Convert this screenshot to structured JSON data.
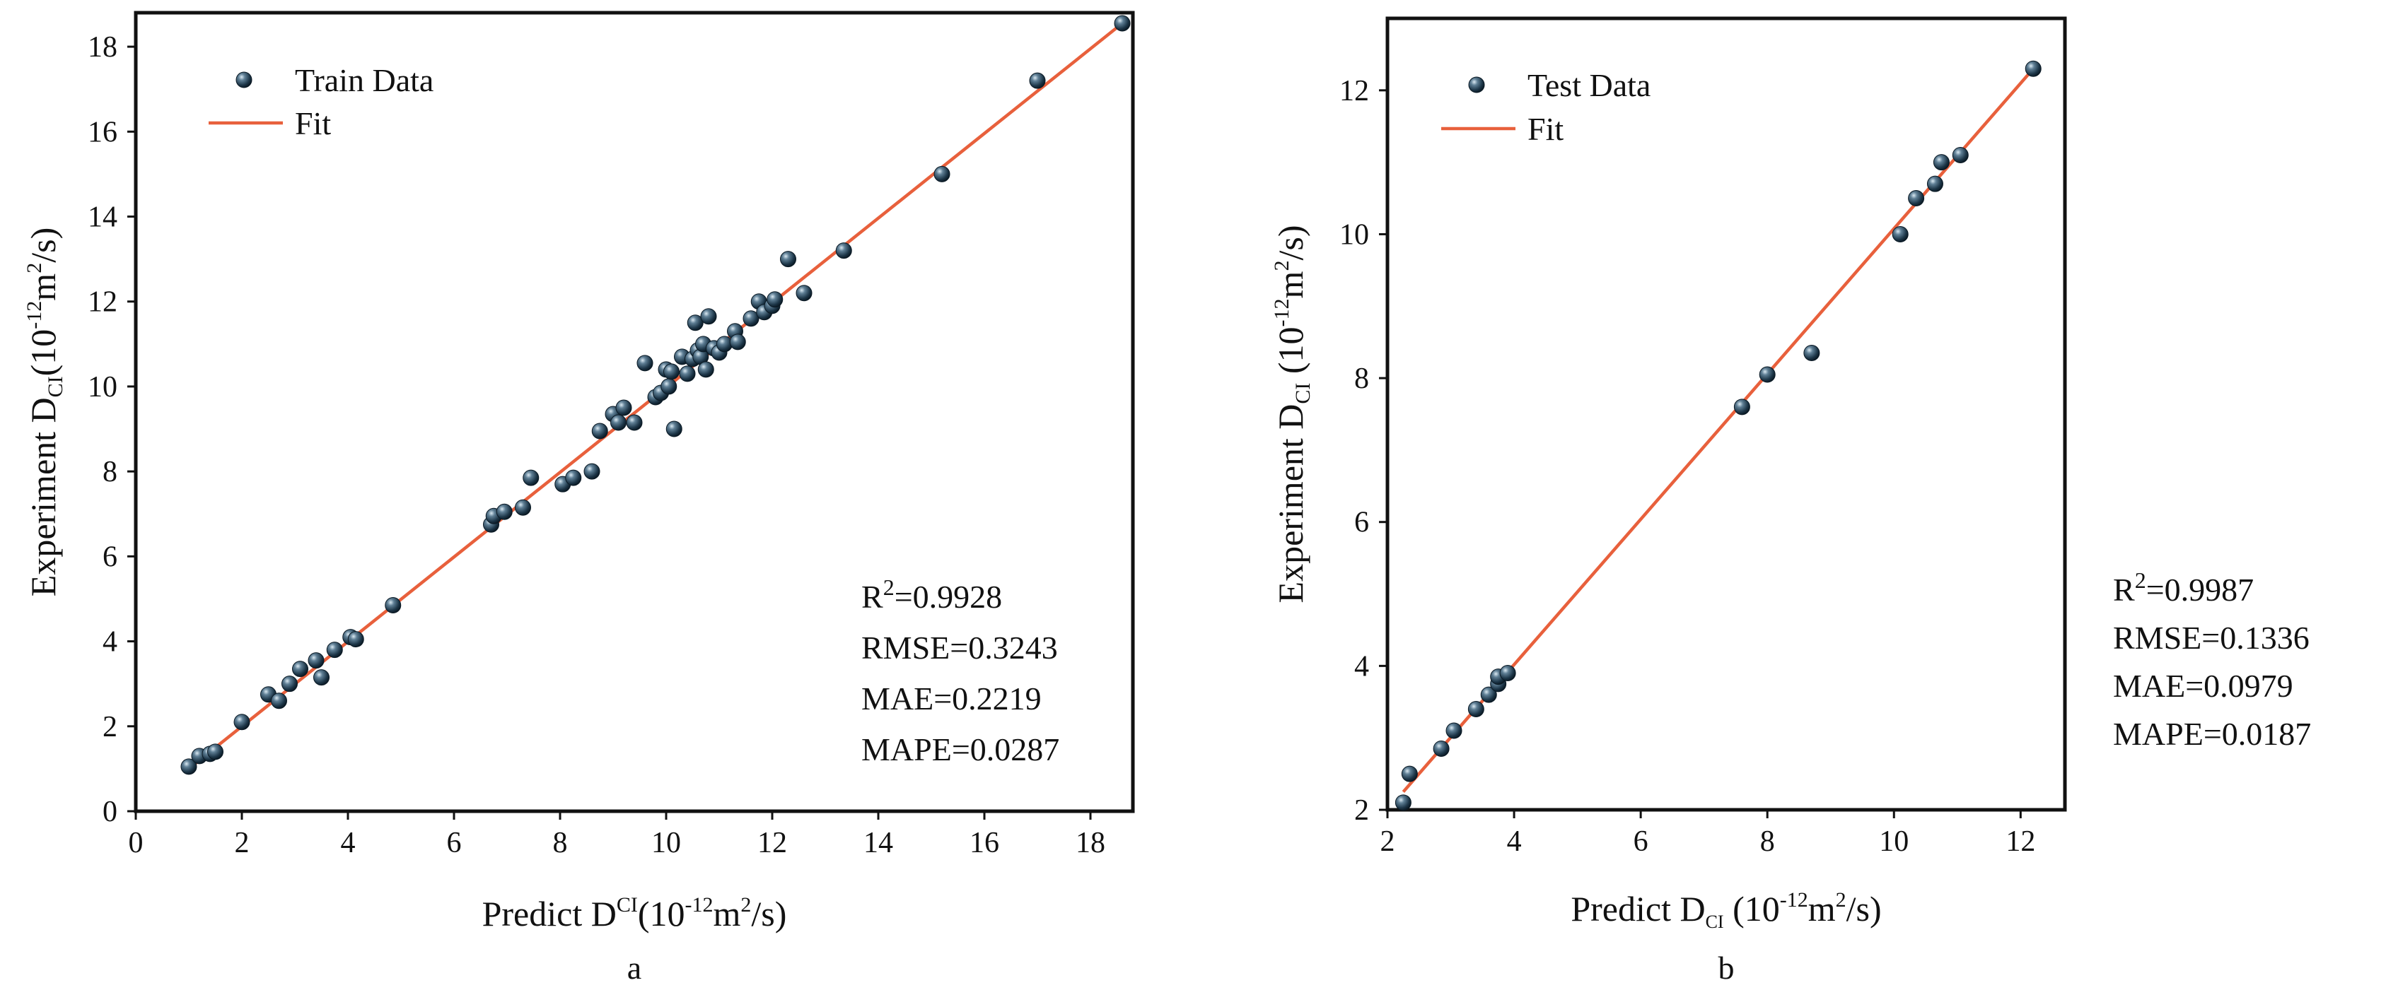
{
  "colors": {
    "marker": "#1f3b4f",
    "marker_highlight": "#bcd6e6",
    "fit_line": "#e8603c",
    "axes": "#111111"
  },
  "chart_data": [
    {
      "type": "scatter",
      "panel_label": "a",
      "xlabel": {
        "main": "Predict D",
        "sup": "CI",
        "rest": "(10",
        "exp": "-12",
        "rest2": "m",
        "exp2": "2",
        "rest3": "/s)"
      },
      "ylabel": {
        "main": "Experiment D",
        "sub": "CI",
        "rest": "(10",
        "exp": "-12",
        "rest2": "m",
        "exp2": "2",
        "rest3": "/s)"
      },
      "xlim": [
        0,
        18.8
      ],
      "ylim": [
        0,
        18.8
      ],
      "xticks": [
        0,
        2,
        4,
        6,
        8,
        10,
        12,
        14,
        16,
        18
      ],
      "yticks": [
        0,
        2,
        4,
        6,
        8,
        10,
        12,
        14,
        16,
        18
      ],
      "legend_position": "top-left",
      "series": [
        {
          "name": "Train Data",
          "kind": "points",
          "points": [
            [
              1.0,
              1.05
            ],
            [
              1.2,
              1.3
            ],
            [
              1.4,
              1.35
            ],
            [
              1.5,
              1.4
            ],
            [
              2.0,
              2.1
            ],
            [
              2.5,
              2.75
            ],
            [
              2.7,
              2.6
            ],
            [
              2.9,
              3.0
            ],
            [
              3.1,
              3.35
            ],
            [
              3.4,
              3.55
            ],
            [
              3.5,
              3.15
            ],
            [
              3.75,
              3.8
            ],
            [
              4.05,
              4.1
            ],
            [
              4.15,
              4.05
            ],
            [
              4.85,
              4.85
            ],
            [
              6.7,
              6.75
            ],
            [
              6.75,
              6.95
            ],
            [
              6.95,
              7.05
            ],
            [
              7.3,
              7.15
            ],
            [
              7.45,
              7.85
            ],
            [
              8.05,
              7.7
            ],
            [
              8.25,
              7.85
            ],
            [
              8.6,
              8.0
            ],
            [
              8.75,
              8.95
            ],
            [
              9.0,
              9.35
            ],
            [
              9.1,
              9.15
            ],
            [
              9.2,
              9.5
            ],
            [
              9.4,
              9.15
            ],
            [
              9.6,
              10.55
            ],
            [
              9.8,
              9.75
            ],
            [
              9.9,
              9.85
            ],
            [
              10.0,
              10.4
            ],
            [
              10.05,
              10.0
            ],
            [
              10.1,
              10.35
            ],
            [
              10.15,
              9.0
            ],
            [
              10.3,
              10.7
            ],
            [
              10.4,
              10.3
            ],
            [
              10.5,
              10.65
            ],
            [
              10.55,
              11.5
            ],
            [
              10.6,
              10.85
            ],
            [
              10.65,
              10.7
            ],
            [
              10.7,
              11.0
            ],
            [
              10.75,
              10.4
            ],
            [
              10.8,
              11.65
            ],
            [
              10.9,
              10.9
            ],
            [
              11.0,
              10.8
            ],
            [
              11.1,
              11.0
            ],
            [
              11.3,
              11.3
            ],
            [
              11.35,
              11.05
            ],
            [
              11.6,
              11.6
            ],
            [
              11.75,
              12.0
            ],
            [
              11.85,
              11.75
            ],
            [
              12.0,
              11.9
            ],
            [
              12.05,
              12.05
            ],
            [
              12.3,
              13.0
            ],
            [
              12.6,
              12.2
            ],
            [
              13.35,
              13.2
            ],
            [
              15.2,
              15.0
            ],
            [
              17.0,
              17.2
            ],
            [
              18.6,
              18.55
            ]
          ]
        },
        {
          "name": "Fit",
          "kind": "line",
          "points": [
            [
              1.0,
              1.0
            ],
            [
              18.6,
              18.55
            ]
          ]
        }
      ],
      "metrics": [
        {
          "label": "R",
          "sup": "2",
          "value": "=0.9928"
        },
        {
          "label": "RMSE",
          "sup": "",
          "value": "=0.3243"
        },
        {
          "label": "MAE",
          "sup": "",
          "value": "=0.2219"
        },
        {
          "label": "MAPE",
          "sup": "",
          "value": "=0.0287"
        }
      ]
    },
    {
      "type": "scatter",
      "panel_label": "b",
      "xlabel": {
        "main": "Predict D",
        "sub": "CI",
        "rest": " (10",
        "exp": "-12",
        "rest2": "m",
        "exp2": "2",
        "rest3": "/s)"
      },
      "ylabel": {
        "main": "Experiment D",
        "sub": "CI",
        "rest": " (10",
        "exp": "-12",
        "rest2": "m",
        "exp2": "2",
        "rest3": "/s)"
      },
      "xlim": [
        2,
        12.7
      ],
      "ylim": [
        2,
        13
      ],
      "xticks": [
        2,
        4,
        6,
        8,
        10,
        12
      ],
      "yticks": [
        2,
        4,
        6,
        8,
        10,
        12
      ],
      "legend_position": "top-left",
      "series": [
        {
          "name": "Test Data",
          "kind": "points",
          "points": [
            [
              2.25,
              2.1
            ],
            [
              2.35,
              2.5
            ],
            [
              2.85,
              2.85
            ],
            [
              3.05,
              3.1
            ],
            [
              3.4,
              3.4
            ],
            [
              3.6,
              3.6
            ],
            [
              3.75,
              3.75
            ],
            [
              3.75,
              3.85
            ],
            [
              3.9,
              3.9
            ],
            [
              7.6,
              7.6
            ],
            [
              8.0,
              8.05
            ],
            [
              8.7,
              8.35
            ],
            [
              10.1,
              10.0
            ],
            [
              10.35,
              10.5
            ],
            [
              10.65,
              10.7
            ],
            [
              10.75,
              11.0
            ],
            [
              11.05,
              11.1
            ],
            [
              12.2,
              12.3
            ]
          ]
        },
        {
          "name": "Fit",
          "kind": "line",
          "points": [
            [
              2.25,
              2.25
            ],
            [
              12.2,
              12.3
            ]
          ]
        }
      ],
      "metrics": [
        {
          "label": "R",
          "sup": "2",
          "value": "=0.9987"
        },
        {
          "label": "RMSE",
          "sup": "",
          "value": "=0.1336"
        },
        {
          "label": "MAE",
          "sup": "",
          "value": "=0.0979"
        },
        {
          "label": "MAPE",
          "sup": "",
          "value": "=0.0187"
        }
      ]
    }
  ]
}
